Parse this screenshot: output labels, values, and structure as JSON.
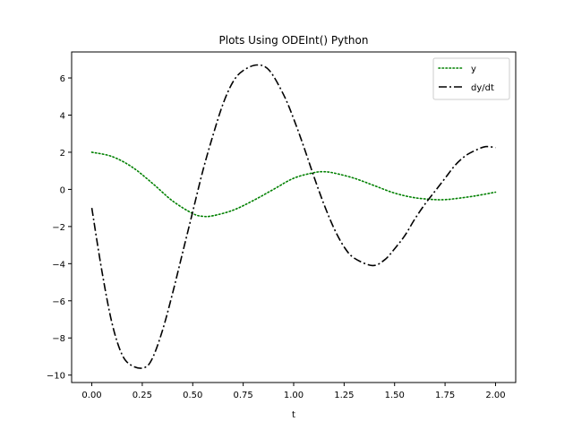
{
  "chart_data": {
    "type": "line",
    "title": "Plots Using ODEInt() Python",
    "xlabel": "t",
    "ylabel": "",
    "xlim": [
      -0.1,
      2.1
    ],
    "ylim": [
      -10.4,
      7.4
    ],
    "xticks": [
      0.0,
      0.25,
      0.5,
      0.75,
      1.0,
      1.25,
      1.5,
      1.75,
      2.0
    ],
    "xtick_labels": [
      "0.00",
      "0.25",
      "0.50",
      "0.75",
      "1.00",
      "1.25",
      "1.50",
      "1.75",
      "2.00"
    ],
    "yticks": [
      -10,
      -8,
      -6,
      -4,
      -2,
      0,
      2,
      4,
      6
    ],
    "ytick_labels": [
      "−10",
      "−8",
      "−6",
      "−4",
      "−2",
      "0",
      "2",
      "4",
      "6"
    ],
    "grid": false,
    "legend_position": "top-right",
    "series": [
      {
        "name": "y",
        "color": "#008000",
        "style": "dotted",
        "x": [
          0.0,
          0.1,
          0.2,
          0.3,
          0.4,
          0.5,
          0.55,
          0.6,
          0.7,
          0.8,
          0.9,
          1.0,
          1.1,
          1.15,
          1.2,
          1.3,
          1.4,
          1.5,
          1.6,
          1.7,
          1.75,
          1.8,
          1.9,
          2.0
        ],
        "values": [
          2.0,
          1.77,
          1.2,
          0.33,
          -0.62,
          -1.3,
          -1.45,
          -1.42,
          -1.12,
          -0.6,
          0.0,
          0.6,
          0.9,
          0.95,
          0.88,
          0.6,
          0.2,
          -0.2,
          -0.45,
          -0.55,
          -0.55,
          -0.5,
          -0.35,
          -0.15
        ]
      },
      {
        "name": "dy/dt",
        "color": "#000000",
        "style": "dashdot",
        "x": [
          0.0,
          0.05,
          0.1,
          0.15,
          0.2,
          0.26,
          0.3,
          0.35,
          0.4,
          0.45,
          0.5,
          0.55,
          0.6,
          0.65,
          0.7,
          0.75,
          0.82,
          0.88,
          0.95,
          1.0,
          1.05,
          1.1,
          1.15,
          1.2,
          1.25,
          1.3,
          1.39,
          1.45,
          1.5,
          1.55,
          1.6,
          1.65,
          1.7,
          1.75,
          1.8,
          1.85,
          1.9,
          1.95,
          2.0
        ],
        "values": [
          -1.0,
          -4.4,
          -7.2,
          -8.9,
          -9.5,
          -9.6,
          -9.1,
          -7.6,
          -5.6,
          -3.4,
          -1.2,
          1.0,
          2.9,
          4.6,
          5.8,
          6.4,
          6.7,
          6.4,
          5.1,
          3.8,
          2.3,
          0.7,
          -0.8,
          -2.1,
          -3.1,
          -3.7,
          -4.1,
          -3.8,
          -3.2,
          -2.5,
          -1.6,
          -0.8,
          -0.1,
          0.6,
          1.3,
          1.8,
          2.1,
          2.3,
          2.25
        ]
      }
    ]
  }
}
